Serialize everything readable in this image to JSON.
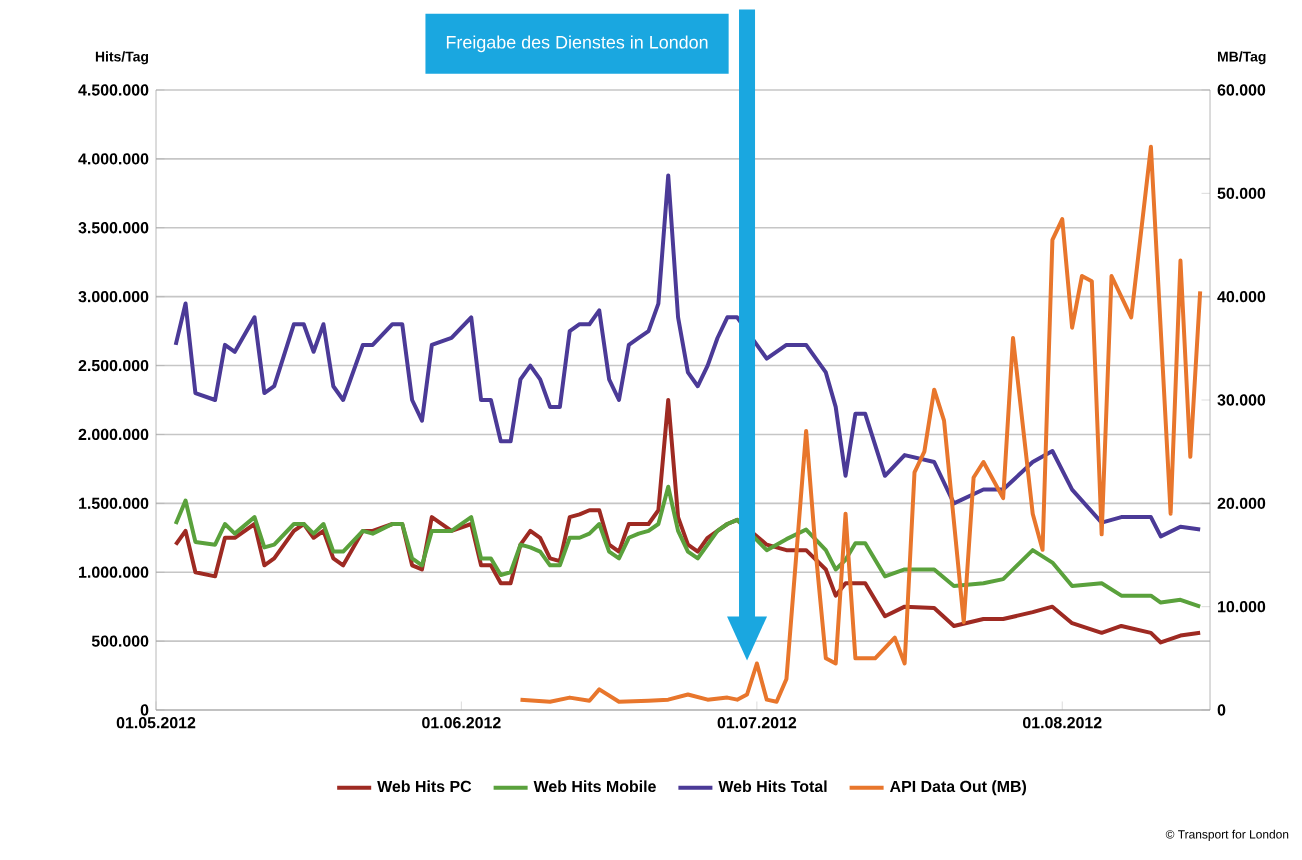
{
  "chart_data": {
    "type": "line",
    "ylabel": "Hits/Tag",
    "y2label": "MB/Tag",
    "xlim": [
      "2012-05-01",
      "2012-08-16"
    ],
    "xticks": [
      {
        "value": "2012-05-01",
        "label": "01.05.2012"
      },
      {
        "value": "2012-06-01",
        "label": "01.06.2012"
      },
      {
        "value": "2012-07-01",
        "label": "01.07.2012"
      },
      {
        "value": "2012-08-01",
        "label": "01.08.2012"
      }
    ],
    "ylim": [
      0,
      4500000
    ],
    "yticks": [
      {
        "value": 0,
        "label": "0"
      },
      {
        "value": 500000,
        "label": "500.000"
      },
      {
        "value": 1000000,
        "label": "1.000.000"
      },
      {
        "value": 1500000,
        "label": "1.500.000"
      },
      {
        "value": 2000000,
        "label": "2.000.000"
      },
      {
        "value": 2500000,
        "label": "2.500.000"
      },
      {
        "value": 3000000,
        "label": "3.000.000"
      },
      {
        "value": 3500000,
        "label": "3.500.000"
      },
      {
        "value": 4000000,
        "label": "4.000.000"
      },
      {
        "value": 4500000,
        "label": "4.500.000"
      }
    ],
    "y2lim": [
      0,
      60000
    ],
    "y2ticks": [
      {
        "value": 0,
        "label": "0"
      },
      {
        "value": 10000,
        "label": "10.000"
      },
      {
        "value": 20000,
        "label": "20.000"
      },
      {
        "value": 30000,
        "label": "30.000"
      },
      {
        "value": 40000,
        "label": "40.000"
      },
      {
        "value": 50000,
        "label": "50.000"
      },
      {
        "value": 60000,
        "label": "60.000"
      }
    ],
    "grid": "y",
    "legend": "bottom",
    "ref_lines": [
      {
        "axis": "x",
        "value": "2012-06-30",
        "label": "Freigabe des Dienstes in London",
        "color": "#1aa7e0"
      }
    ],
    "annotations": [
      "© Transport for London"
    ],
    "series": [
      {
        "name": "Web Hits PC",
        "color": "#9e2a22",
        "x": [
          "2012-05-03",
          "2012-05-04",
          "2012-05-05",
          "2012-05-07",
          "2012-05-08",
          "2012-05-09",
          "2012-05-11",
          "2012-05-12",
          "2012-05-13",
          "2012-05-15",
          "2012-05-16",
          "2012-05-17",
          "2012-05-18",
          "2012-05-19",
          "2012-05-20",
          "2012-05-22",
          "2012-05-23",
          "2012-05-25",
          "2012-05-26",
          "2012-05-27",
          "2012-05-28",
          "2012-05-29",
          "2012-05-31",
          "2012-06-02",
          "2012-06-03",
          "2012-06-04",
          "2012-06-05",
          "2012-06-06",
          "2012-06-07",
          "2012-06-08",
          "2012-06-09",
          "2012-06-10",
          "2012-06-11",
          "2012-06-12",
          "2012-06-13",
          "2012-06-14",
          "2012-06-15",
          "2012-06-16",
          "2012-06-17",
          "2012-06-18",
          "2012-06-19",
          "2012-06-20",
          "2012-06-21",
          "2012-06-22",
          "2012-06-23",
          "2012-06-24",
          "2012-06-25",
          "2012-06-26",
          "2012-06-27",
          "2012-06-28",
          "2012-06-29",
          "2012-07-02",
          "2012-07-04",
          "2012-07-06",
          "2012-07-08",
          "2012-07-09",
          "2012-07-10",
          "2012-07-11",
          "2012-07-12",
          "2012-07-14",
          "2012-07-16",
          "2012-07-19",
          "2012-07-21",
          "2012-07-24",
          "2012-07-26",
          "2012-07-29",
          "2012-07-31",
          "2012-08-02",
          "2012-08-05",
          "2012-08-07",
          "2012-08-10",
          "2012-08-11",
          "2012-08-13",
          "2012-08-15"
        ],
        "values": [
          1200000,
          1300000,
          1000000,
          970000,
          1250000,
          1250000,
          1350000,
          1050000,
          1100000,
          1300000,
          1350000,
          1250000,
          1300000,
          1100000,
          1050000,
          1300000,
          1300000,
          1350000,
          1350000,
          1050000,
          1020000,
          1400000,
          1300000,
          1350000,
          1050000,
          1050000,
          920000,
          920000,
          1200000,
          1300000,
          1250000,
          1100000,
          1080000,
          1400000,
          1420000,
          1450000,
          1450000,
          1200000,
          1150000,
          1350000,
          1350000,
          1350000,
          1450000,
          2250000,
          1400000,
          1200000,
          1150000,
          1250000,
          1300000,
          1350000,
          1380000,
          1200000,
          1160000,
          1160000,
          1020000,
          830000,
          920000,
          920000,
          920000,
          680000,
          750000,
          740000,
          610000,
          660000,
          660000,
          710000,
          750000,
          630000,
          560000,
          610000,
          560000,
          490000,
          540000,
          560000
        ]
      },
      {
        "name": "Web Hits Mobile",
        "color": "#5aa13c",
        "x": [
          "2012-05-03",
          "2012-05-04",
          "2012-05-05",
          "2012-05-07",
          "2012-05-08",
          "2012-05-09",
          "2012-05-11",
          "2012-05-12",
          "2012-05-13",
          "2012-05-15",
          "2012-05-16",
          "2012-05-17",
          "2012-05-18",
          "2012-05-19",
          "2012-05-20",
          "2012-05-22",
          "2012-05-23",
          "2012-05-25",
          "2012-05-26",
          "2012-05-27",
          "2012-05-28",
          "2012-05-29",
          "2012-05-31",
          "2012-06-02",
          "2012-06-03",
          "2012-06-04",
          "2012-06-05",
          "2012-06-06",
          "2012-06-07",
          "2012-06-08",
          "2012-06-09",
          "2012-06-10",
          "2012-06-11",
          "2012-06-12",
          "2012-06-13",
          "2012-06-14",
          "2012-06-15",
          "2012-06-16",
          "2012-06-17",
          "2012-06-18",
          "2012-06-19",
          "2012-06-20",
          "2012-06-21",
          "2012-06-22",
          "2012-06-23",
          "2012-06-24",
          "2012-06-25",
          "2012-06-26",
          "2012-06-27",
          "2012-06-28",
          "2012-06-29",
          "2012-07-02",
          "2012-07-04",
          "2012-07-06",
          "2012-07-08",
          "2012-07-09",
          "2012-07-10",
          "2012-07-11",
          "2012-07-12",
          "2012-07-14",
          "2012-07-16",
          "2012-07-19",
          "2012-07-21",
          "2012-07-24",
          "2012-07-26",
          "2012-07-29",
          "2012-07-31",
          "2012-08-02",
          "2012-08-05",
          "2012-08-07",
          "2012-08-10",
          "2012-08-11",
          "2012-08-13",
          "2012-08-15"
        ],
        "values": [
          1350000,
          1520000,
          1220000,
          1200000,
          1350000,
          1280000,
          1400000,
          1180000,
          1200000,
          1350000,
          1350000,
          1280000,
          1350000,
          1150000,
          1150000,
          1300000,
          1280000,
          1350000,
          1350000,
          1100000,
          1050000,
          1300000,
          1300000,
          1400000,
          1100000,
          1100000,
          980000,
          1000000,
          1200000,
          1180000,
          1150000,
          1050000,
          1050000,
          1250000,
          1250000,
          1280000,
          1350000,
          1150000,
          1100000,
          1250000,
          1280000,
          1300000,
          1350000,
          1620000,
          1300000,
          1150000,
          1100000,
          1200000,
          1300000,
          1350000,
          1380000,
          1160000,
          1240000,
          1310000,
          1160000,
          1020000,
          1090000,
          1210000,
          1210000,
          970000,
          1020000,
          1020000,
          900000,
          920000,
          950000,
          1160000,
          1070000,
          900000,
          920000,
          830000,
          830000,
          780000,
          800000,
          750000
        ]
      },
      {
        "name": "Web Hits Total",
        "color": "#4b3a97",
        "x": [
          "2012-05-03",
          "2012-05-04",
          "2012-05-05",
          "2012-05-07",
          "2012-05-08",
          "2012-05-09",
          "2012-05-11",
          "2012-05-12",
          "2012-05-13",
          "2012-05-15",
          "2012-05-16",
          "2012-05-17",
          "2012-05-18",
          "2012-05-19",
          "2012-05-20",
          "2012-05-22",
          "2012-05-23",
          "2012-05-25",
          "2012-05-26",
          "2012-05-27",
          "2012-05-28",
          "2012-05-29",
          "2012-05-31",
          "2012-06-02",
          "2012-06-03",
          "2012-06-04",
          "2012-06-05",
          "2012-06-06",
          "2012-06-07",
          "2012-06-08",
          "2012-06-09",
          "2012-06-10",
          "2012-06-11",
          "2012-06-12",
          "2012-06-13",
          "2012-06-14",
          "2012-06-15",
          "2012-06-16",
          "2012-06-17",
          "2012-06-18",
          "2012-06-19",
          "2012-06-20",
          "2012-06-21",
          "2012-06-22",
          "2012-06-23",
          "2012-06-24",
          "2012-06-25",
          "2012-06-26",
          "2012-06-27",
          "2012-06-28",
          "2012-06-29",
          "2012-07-02",
          "2012-07-04",
          "2012-07-06",
          "2012-07-08",
          "2012-07-09",
          "2012-07-10",
          "2012-07-11",
          "2012-07-12",
          "2012-07-14",
          "2012-07-16",
          "2012-07-19",
          "2012-07-21",
          "2012-07-24",
          "2012-07-26",
          "2012-07-29",
          "2012-07-31",
          "2012-08-02",
          "2012-08-05",
          "2012-08-07",
          "2012-08-10",
          "2012-08-11",
          "2012-08-13",
          "2012-08-15"
        ],
        "values": [
          2650000,
          2950000,
          2300000,
          2250000,
          2650000,
          2600000,
          2850000,
          2300000,
          2350000,
          2800000,
          2800000,
          2600000,
          2800000,
          2350000,
          2250000,
          2650000,
          2650000,
          2800000,
          2800000,
          2250000,
          2100000,
          2650000,
          2700000,
          2850000,
          2250000,
          2250000,
          1950000,
          1950000,
          2400000,
          2500000,
          2400000,
          2200000,
          2200000,
          2750000,
          2800000,
          2800000,
          2900000,
          2400000,
          2250000,
          2650000,
          2700000,
          2750000,
          2950000,
          3880000,
          2850000,
          2450000,
          2350000,
          2500000,
          2700000,
          2850000,
          2850000,
          2550000,
          2650000,
          2650000,
          2450000,
          2200000,
          1700000,
          2150000,
          2150000,
          1700000,
          1850000,
          1800000,
          1500000,
          1600000,
          1600000,
          1800000,
          1880000,
          1600000,
          1360000,
          1400000,
          1400000,
          1260000,
          1330000,
          1310000
        ]
      },
      {
        "name": "API Data Out (MB)",
        "color": "#e8762c",
        "axis": "y2",
        "x": [
          "2012-06-07",
          "2012-06-10",
          "2012-06-12",
          "2012-06-14",
          "2012-06-15",
          "2012-06-17",
          "2012-06-20",
          "2012-06-22",
          "2012-06-24",
          "2012-06-26",
          "2012-06-28",
          "2012-06-29",
          "2012-06-30",
          "2012-07-01",
          "2012-07-02",
          "2012-07-03",
          "2012-07-04",
          "2012-07-06",
          "2012-07-07",
          "2012-07-08",
          "2012-07-09",
          "2012-07-10",
          "2012-07-11",
          "2012-07-13",
          "2012-07-15",
          "2012-07-16",
          "2012-07-17",
          "2012-07-18",
          "2012-07-19",
          "2012-07-20",
          "2012-07-22",
          "2012-07-23",
          "2012-07-24",
          "2012-07-26",
          "2012-07-27",
          "2012-07-29",
          "2012-07-30",
          "2012-07-31",
          "2012-08-01",
          "2012-08-02",
          "2012-08-03",
          "2012-08-04",
          "2012-08-05",
          "2012-08-06",
          "2012-08-08",
          "2012-08-10",
          "2012-08-12",
          "2012-08-13",
          "2012-08-14",
          "2012-08-15"
        ],
        "values": [
          1000,
          800,
          1200,
          900,
          2000,
          800,
          900,
          1000,
          1500,
          1000,
          1200,
          1000,
          1500,
          4500,
          1000,
          800,
          3000,
          27000,
          15000,
          5000,
          4500,
          19000,
          5000,
          5000,
          7000,
          4500,
          23000,
          25000,
          31000,
          28000,
          8500,
          22500,
          24000,
          20500,
          36000,
          19000,
          15500,
          45500,
          47500,
          37000,
          42000,
          41500,
          17000,
          42000,
          38000,
          54500,
          19000,
          43500,
          24500,
          40500
        ]
      }
    ]
  }
}
